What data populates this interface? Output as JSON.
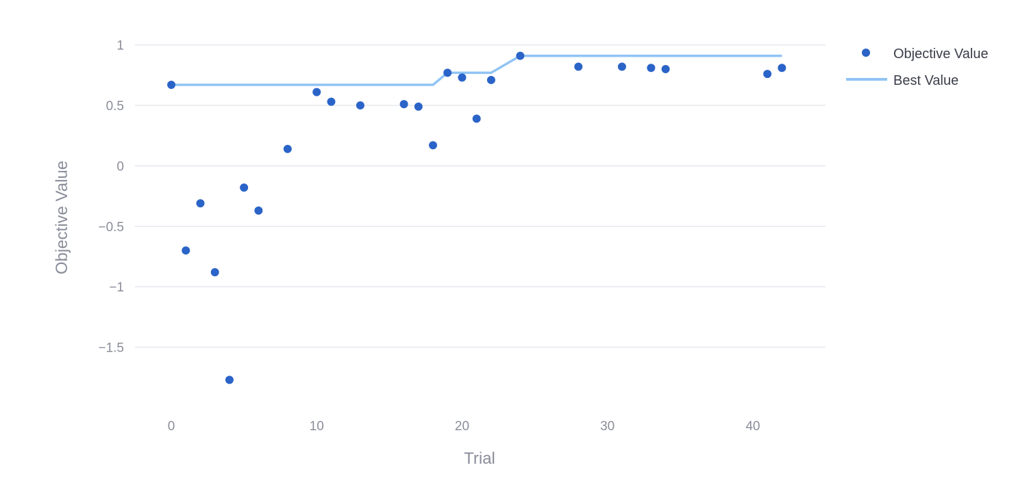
{
  "chart_data": {
    "type": "scatter",
    "title": "",
    "xlabel": "Trial",
    "ylabel": "Objective Value",
    "xlim": [
      -2.5,
      45
    ],
    "ylim": [
      -2.0,
      1.1
    ],
    "xticks": [
      0,
      10,
      20,
      30,
      40
    ],
    "yticks": [
      1,
      0.5,
      0,
      -0.5,
      -1,
      -1.5
    ],
    "ytick_labels": [
      "1",
      "0.5",
      "0",
      "−0.5",
      "−1",
      "−1.5"
    ],
    "grid": "horizontal",
    "legend": "top-right outside",
    "series": [
      {
        "name": "Objective Value",
        "kind": "markers",
        "color": "#2b64c8",
        "x": [
          0,
          1,
          2,
          3,
          4,
          5,
          6,
          8,
          10,
          11,
          13,
          16,
          17,
          18,
          19,
          20,
          21,
          22,
          24,
          28,
          31,
          33,
          34,
          41,
          42
        ],
        "y": [
          0.67,
          -0.7,
          -0.31,
          -0.88,
          -1.77,
          -0.18,
          -0.37,
          0.14,
          0.61,
          0.53,
          0.5,
          0.51,
          0.49,
          0.17,
          0.77,
          0.73,
          0.39,
          0.71,
          0.91,
          0.82,
          0.82,
          0.81,
          0.8,
          0.76,
          0.81
        ]
      },
      {
        "name": "Best Value",
        "kind": "line",
        "color": "#90c4f4",
        "x": [
          0,
          1,
          2,
          3,
          4,
          5,
          6,
          8,
          10,
          11,
          13,
          16,
          17,
          18,
          19,
          20,
          21,
          22,
          24,
          28,
          31,
          33,
          34,
          41,
          42
        ],
        "y": [
          0.67,
          0.67,
          0.67,
          0.67,
          0.67,
          0.67,
          0.67,
          0.67,
          0.67,
          0.67,
          0.67,
          0.67,
          0.67,
          0.67,
          0.77,
          0.77,
          0.77,
          0.77,
          0.91,
          0.91,
          0.91,
          0.91,
          0.91,
          0.91,
          0.91
        ]
      }
    ]
  }
}
